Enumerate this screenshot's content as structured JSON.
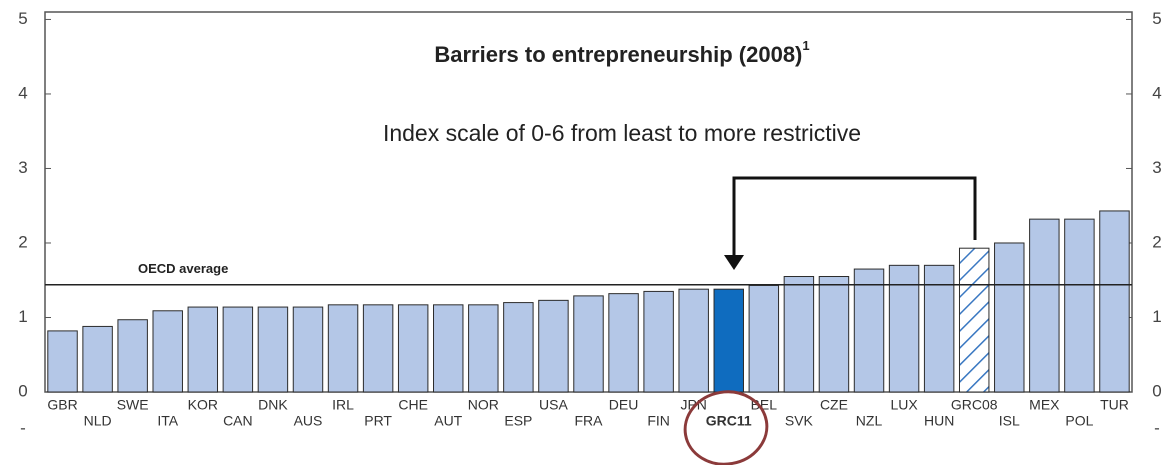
{
  "chart_data": {
    "type": "bar",
    "title": "Barriers to entrepreneurship (2008)",
    "title_note": "1",
    "subtitle": "Index scale of 0-6 from least to more restrictive",
    "categories": [
      "GBR",
      "NLD",
      "SWE",
      "ITA",
      "KOR",
      "CAN",
      "DNK",
      "AUS",
      "IRL",
      "PRT",
      "CHE",
      "AUT",
      "NOR",
      "ESP",
      "USA",
      "FRA",
      "DEU",
      "FIN",
      "JPN",
      "GRC11",
      "BEL",
      "SVK",
      "CZE",
      "NZL",
      "LUX",
      "HUN",
      "GRC08",
      "ISL",
      "MEX",
      "POL",
      "TUR"
    ],
    "values": [
      0.82,
      0.88,
      0.97,
      1.09,
      1.14,
      1.14,
      1.14,
      1.14,
      1.17,
      1.17,
      1.17,
      1.17,
      1.17,
      1.2,
      1.23,
      1.29,
      1.32,
      1.35,
      1.38,
      1.38,
      1.43,
      1.55,
      1.55,
      1.65,
      1.7,
      1.7,
      1.93,
      2.0,
      2.32,
      2.32,
      2.43
    ],
    "colors": [
      "#b4c7e7",
      "#b4c7e7",
      "#b4c7e7",
      "#b4c7e7",
      "#b4c7e7",
      "#b4c7e7",
      "#b4c7e7",
      "#b4c7e7",
      "#b4c7e7",
      "#b4c7e7",
      "#b4c7e7",
      "#b4c7e7",
      "#b4c7e7",
      "#b4c7e7",
      "#b4c7e7",
      "#b4c7e7",
      "#b4c7e7",
      "#b4c7e7",
      "#b4c7e7",
      "#0f6cbf",
      "#b4c7e7",
      "#b4c7e7",
      "#b4c7e7",
      "#b4c7e7",
      "#b4c7e7",
      "#b4c7e7",
      "hatch",
      "#b4c7e7",
      "#b4c7e7",
      "#b4c7e7",
      "#b4c7e7"
    ],
    "reference_line": {
      "label": "OECD average",
      "value": 1.44
    },
    "ylim": [
      0,
      5.1
    ],
    "yticks": [
      0,
      1,
      2,
      3,
      4,
      5,
      {
        "value": -0.5,
        "label": "-"
      }
    ]
  }
}
